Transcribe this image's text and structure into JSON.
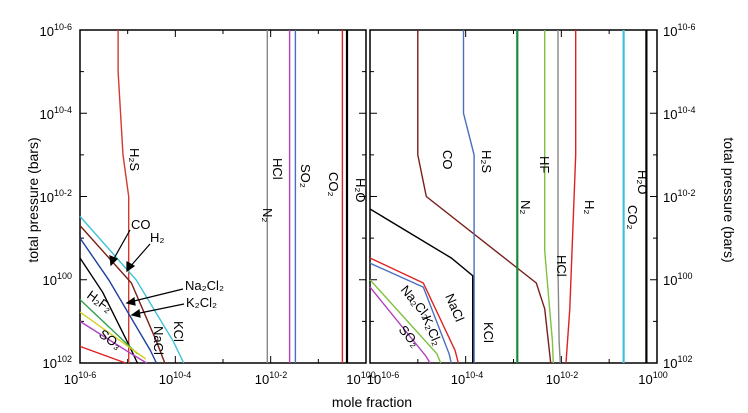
{
  "chart_data": [
    {
      "type": "line",
      "panel": "left",
      "xscale": "log",
      "yscale": "log",
      "xlim": [
        1e-06,
        1
      ],
      "ylim": [
        1e-06,
        100
      ],
      "y_inverted": true,
      "xlabel": "mole fraction",
      "ylabel": "total pressure (bars)",
      "xtick_labels": [
        "10-6",
        "10-4",
        "10-2",
        "100"
      ],
      "ytick_labels": [
        "10-6",
        "10-4",
        "10-2",
        "100",
        "102"
      ],
      "series": [
        {
          "name": "H2S",
          "label": "H₂S",
          "color": "#d23a2e",
          "x": [
            6.3e-06,
            6.3e-06,
            8e-06,
            1.05e-05,
            1.05e-05
          ],
          "y": [
            1e-06,
            1e-05,
            0.001,
            0.01,
            100
          ]
        },
        {
          "name": "HCl",
          "label": "HCl",
          "color": "#888888",
          "x": [
            0.0085,
            0.0085
          ],
          "y": [
            1e-06,
            100
          ]
        },
        {
          "name": "N2",
          "label": "N₂",
          "color": "#b040c0",
          "x": [
            0.025,
            0.025
          ],
          "y": [
            1e-06,
            100
          ]
        },
        {
          "name": "SO2",
          "label": "SO₂",
          "color": "#4a6fc0",
          "x": [
            0.033,
            0.033
          ],
          "y": [
            1e-06,
            100
          ]
        },
        {
          "name": "CO2",
          "label": "CO₂",
          "color": "#e02020",
          "x": [
            0.32,
            0.32
          ],
          "y": [
            1e-06,
            100
          ]
        },
        {
          "name": "H2O",
          "label": "H₂O",
          "color": "#000000",
          "x": [
            0.4,
            0.4
          ],
          "y": [
            1e-06,
            100
          ]
        },
        {
          "name": "KCl",
          "label": "KCl",
          "color": "#3fc0d8",
          "x": [
            1e-06,
            1.5e-05,
            9e-05,
            0.00015
          ],
          "y": [
            0.03,
            1.0,
            30,
            100
          ]
        },
        {
          "name": "NaCl",
          "label": "NaCl",
          "color": "#7a1f1a",
          "x": [
            1e-06,
            1.2e-05,
            4e-05,
            6e-05
          ],
          "y": [
            0.05,
            1.2,
            30,
            100
          ]
        },
        {
          "name": "CO",
          "label": "CO",
          "color": "#1f3fa0",
          "x": [
            1e-06,
            4e-06,
            3e-05,
            4e-05
          ],
          "y": [
            0.1,
            1.0,
            50,
            100
          ]
        },
        {
          "name": "H2",
          "label": "H₂",
          "color": "#000000",
          "x": [
            1e-06,
            3e-06,
            1.1e-05,
            1.6e-05
          ],
          "y": [
            0.3,
            2.0,
            40,
            100
          ]
        },
        {
          "name": "Na2Cl2",
          "label": "Na₂Cl₂",
          "color": "#2fa04a",
          "x": [
            1e-06,
            1.6e-05
          ],
          "y": [
            3.0,
            60
          ]
        },
        {
          "name": "K2Cl2",
          "label": "K₂Cl₂",
          "color": "#d0d020",
          "x": [
            1e-06,
            2.4e-05
          ],
          "y": [
            6.0,
            80
          ]
        },
        {
          "name": "H2F2",
          "label": "H₂F₂",
          "color": "#b040c0",
          "x": [
            1e-06,
            1.2e-05,
            2.5e-05
          ],
          "y": [
            10,
            60,
            100
          ]
        },
        {
          "name": "SO3",
          "label": "SO₃",
          "color": "#e02020",
          "x": [
            1e-06,
            9e-06
          ],
          "y": [
            40,
            100
          ]
        }
      ]
    },
    {
      "type": "line",
      "panel": "right",
      "xscale": "log",
      "yscale": "log",
      "xlim": [
        1e-06,
        1
      ],
      "ylim": [
        1e-06,
        100
      ],
      "y_inverted": true,
      "ylabel": "total pressure (bars)",
      "xtick_labels": [
        "10-6",
        "10-4",
        "10-2",
        "100"
      ],
      "ytick_labels": [
        "10-6",
        "10-4",
        "10-2",
        "100",
        "102"
      ],
      "series": [
        {
          "name": "CO",
          "label": "CO",
          "color": "#7a1f1a",
          "x": [
            1e-05,
            1e-05,
            1.5e-05,
            0.003,
            0.0045,
            0.006
          ],
          "y": [
            1e-06,
            0.001,
            0.01,
            1.2,
            5,
            100
          ]
        },
        {
          "name": "H2S",
          "label": "H₂S",
          "color": "#4a6fc0",
          "x": [
            9e-05,
            9e-05,
            0.00015,
            0.00015
          ],
          "y": [
            1e-06,
            0.0001,
            0.001,
            100
          ]
        },
        {
          "name": "HF",
          "label": "HF",
          "color": "#7fc241",
          "x": [
            0.0045,
            0.0045,
            0.0065,
            0.0068
          ],
          "y": [
            1e-06,
            0.2,
            30,
            100
          ]
        },
        {
          "name": "N2",
          "label": "N₂",
          "color": "#1a8a3a",
          "x": [
            0.0012,
            0.0012
          ],
          "y": [
            1e-06,
            100
          ]
        },
        {
          "name": "HCl",
          "label": "HCl",
          "color": "#888888",
          "x": [
            0.0085,
            0.0085,
            0.009,
            0.0095
          ],
          "y": [
            1e-06,
            0.5,
            30,
            100
          ]
        },
        {
          "name": "H2",
          "label": "H₂",
          "color": "#e02020",
          "x": [
            0.02,
            0.02,
            0.015,
            0.0125
          ],
          "y": [
            1e-06,
            0.001,
            5,
            100
          ]
        },
        {
          "name": "CO2",
          "label": "CO₂",
          "color": "#3fc0d8",
          "x": [
            0.2,
            0.2
          ],
          "y": [
            1e-06,
            100
          ]
        },
        {
          "name": "H2O",
          "label": "H₂O",
          "color": "#000000",
          "x": [
            0.6,
            0.6
          ],
          "y": [
            1e-06,
            100
          ]
        },
        {
          "name": "KCl",
          "label": "KCl",
          "color": "#000000",
          "x": [
            1e-06,
            5e-05,
            0.00014,
            0.00014
          ],
          "y": [
            0.02,
            0.3,
            0.8,
            100
          ]
        },
        {
          "name": "NaCl",
          "label": "NaCl",
          "color": "#e02020",
          "x": [
            1e-06,
            1.3e-05,
            6e-05,
            7e-05
          ],
          "y": [
            0.3,
            1.2,
            50,
            100
          ]
        },
        {
          "name": "K2Cl2",
          "label": "K₂Cl₂",
          "color": "#4a6fc0",
          "x": [
            1e-06,
            1.3e-05,
            4.5e-05,
            5e-05
          ],
          "y": [
            0.4,
            1.5,
            60,
            100
          ]
        },
        {
          "name": "Na2Cl2",
          "label": "Na₂Cl₂",
          "color": "#7fc241",
          "x": [
            1e-06,
            2.5e-05,
            3e-05
          ],
          "y": [
            1.0,
            60,
            100
          ]
        },
        {
          "name": "SO2",
          "label": "SO₂",
          "color": "#b040c0",
          "x": [
            1e-06,
            1.5e-05,
            1.8e-05
          ],
          "y": [
            1.5,
            70,
            100
          ]
        }
      ]
    }
  ]
}
